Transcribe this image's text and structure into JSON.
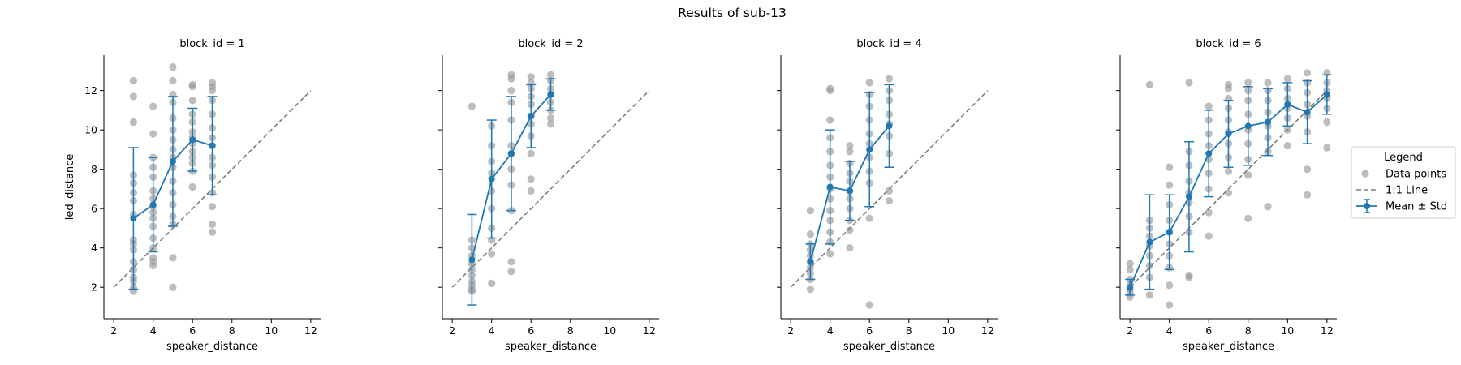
{
  "figure": {
    "title": "Results of sub-13"
  },
  "legend": {
    "title": "Legend",
    "entries": {
      "points": "Data points",
      "line": "1:1 Line",
      "mean": "Mean ± Std"
    }
  },
  "colors": {
    "points": "#999999",
    "mean": "#1f77b4",
    "identity": "#7f7f7f"
  },
  "chart_data": [
    {
      "type": "scatter",
      "title": "block_id = 1",
      "xlabel": "speaker_distance",
      "ylabel": "led_distance",
      "xlim": [
        1.5,
        12.5
      ],
      "ylim": [
        0.4,
        13.8
      ],
      "xticks": [
        2,
        4,
        6,
        8,
        10,
        12
      ],
      "yticks": [
        2,
        4,
        6,
        8,
        10,
        12
      ],
      "identity_line": [
        2,
        12
      ],
      "series": [
        {
          "x": 3,
          "mean": 5.5,
          "std": 3.6,
          "points": [
            1.8,
            2.0,
            2.3,
            2.5,
            2.9,
            3.3,
            3.9,
            4.2,
            4.4,
            5.7,
            6.4,
            6.8,
            7.3,
            7.7,
            10.4,
            11.7,
            12.5
          ]
        },
        {
          "x": 4,
          "mean": 6.2,
          "std": 2.4,
          "points": [
            3.1,
            3.3,
            3.5,
            4.0,
            4.5,
            5.1,
            5.5,
            5.8,
            6.1,
            6.5,
            6.9,
            7.6,
            8.1,
            8.6,
            9.8,
            11.2
          ]
        },
        {
          "x": 5,
          "mean": 8.4,
          "std": 3.3,
          "points": [
            2.0,
            3.5,
            5.2,
            5.6,
            6.2,
            6.8,
            7.4,
            8.1,
            8.6,
            9.0,
            9.5,
            10.0,
            10.6,
            11.4,
            11.8,
            12.5,
            13.2
          ]
        },
        {
          "x": 6,
          "mean": 9.5,
          "std": 1.6,
          "points": [
            7.1,
            7.9,
            8.3,
            8.6,
            8.9,
            9.3,
            9.6,
            9.9,
            10.4,
            10.8,
            11.5,
            12.2,
            12.3
          ]
        },
        {
          "x": 7,
          "mean": 9.2,
          "std": 2.5,
          "points": [
            4.8,
            5.2,
            6.1,
            6.8,
            7.6,
            8.2,
            8.6,
            9.2,
            9.6,
            10.1,
            10.8,
            11.5,
            12.0,
            12.2,
            12.4
          ]
        }
      ]
    },
    {
      "type": "scatter",
      "title": "block_id = 2",
      "xlabel": "speaker_distance",
      "ylabel": "",
      "xlim": [
        1.5,
        12.5
      ],
      "ylim": [
        0.4,
        13.8
      ],
      "xticks": [
        2,
        4,
        6,
        8,
        10,
        12
      ],
      "yticks": [
        2,
        4,
        6,
        8,
        10,
        12
      ],
      "identity_line": [
        2,
        12
      ],
      "series": [
        {
          "x": 3,
          "mean": 3.4,
          "std": 2.3,
          "points": [
            1.8,
            1.9,
            2.1,
            2.3,
            2.6,
            2.9,
            3.2,
            3.6,
            4.0,
            4.4,
            11.2
          ]
        },
        {
          "x": 4,
          "mean": 7.5,
          "std": 3.0,
          "points": [
            2.2,
            3.7,
            4.4,
            5.0,
            6.0,
            6.9,
            7.8,
            8.4,
            9.2,
            10.2
          ]
        },
        {
          "x": 5,
          "mean": 8.8,
          "std": 2.9,
          "points": [
            2.8,
            3.3,
            5.9,
            7.2,
            8.0,
            8.8,
            9.2,
            10.5,
            11.4,
            12.0,
            12.6,
            12.8
          ]
        },
        {
          "x": 6,
          "mean": 10.7,
          "std": 1.6,
          "points": [
            6.9,
            7.5,
            8.8,
            9.7,
            10.3,
            10.7,
            11.3,
            11.7,
            12.1,
            12.4,
            12.7
          ]
        },
        {
          "x": 7,
          "mean": 11.8,
          "std": 0.8,
          "points": [
            10.3,
            10.6,
            11.0,
            11.4,
            11.8,
            12.1,
            12.5,
            12.8
          ]
        }
      ]
    },
    {
      "type": "scatter",
      "title": "block_id = 4",
      "xlabel": "speaker_distance",
      "ylabel": "",
      "xlim": [
        1.5,
        12.5
      ],
      "ylim": [
        0.4,
        13.8
      ],
      "xticks": [
        2,
        4,
        6,
        8,
        10,
        12
      ],
      "yticks": [
        2,
        4,
        6,
        8,
        10,
        12
      ],
      "identity_line": [
        2,
        12
      ],
      "series": [
        {
          "x": 3,
          "mean": 3.3,
          "std": 0.9,
          "points": [
            1.9,
            2.4,
            2.7,
            3.0,
            3.3,
            3.6,
            3.9,
            4.2,
            4.7,
            5.9
          ]
        },
        {
          "x": 4,
          "mean": 7.1,
          "std": 2.9,
          "points": [
            3.7,
            4.3,
            4.8,
            5.4,
            5.9,
            6.5,
            7.0,
            7.6,
            8.2,
            8.9,
            9.6,
            10.5,
            12.0,
            12.1
          ]
        },
        {
          "x": 5,
          "mean": 6.9,
          "std": 1.5,
          "points": [
            4.0,
            4.9,
            5.4,
            6.0,
            6.5,
            6.9,
            7.4,
            7.8,
            8.3,
            8.9,
            9.2
          ]
        },
        {
          "x": 6,
          "mean": 9.0,
          "std": 2.9,
          "points": [
            1.1,
            5.5,
            7.3,
            7.9,
            8.6,
            9.3,
            9.8,
            10.5,
            11.2,
            11.8,
            12.4
          ]
        },
        {
          "x": 7,
          "mean": 10.2,
          "std": 2.1,
          "points": [
            6.4,
            6.9,
            8.8,
            9.7,
            10.3,
            10.8,
            11.5,
            12.0,
            12.6
          ]
        }
      ]
    },
    {
      "type": "scatter",
      "title": "block_id = 6",
      "xlabel": "speaker_distance",
      "ylabel": "",
      "xlim": [
        1.5,
        12.5
      ],
      "ylim": [
        0.4,
        13.8
      ],
      "xticks": [
        2,
        4,
        6,
        8,
        10,
        12
      ],
      "yticks": [
        2,
        4,
        6,
        8,
        10,
        12
      ],
      "identity_line": [
        2,
        12
      ],
      "series": [
        {
          "x": 2,
          "mean": 2.0,
          "std": 0.4,
          "points": [
            1.5,
            1.7,
            1.9,
            2.1,
            2.4,
            2.9,
            3.2
          ]
        },
        {
          "x": 3,
          "mean": 4.3,
          "std": 2.4,
          "points": [
            1.6,
            2.5,
            3.1,
            3.6,
            4.1,
            4.6,
            5.0,
            5.4,
            12.3
          ]
        },
        {
          "x": 4,
          "mean": 4.8,
          "std": 1.9,
          "points": [
            1.1,
            2.1,
            3.0,
            3.6,
            4.2,
            4.8,
            5.4,
            6.2,
            7.2,
            8.1
          ]
        },
        {
          "x": 5,
          "mean": 6.6,
          "std": 2.8,
          "points": [
            2.5,
            2.6,
            4.8,
            5.6,
            6.3,
            6.8,
            7.4,
            8.2,
            8.9,
            12.4
          ]
        },
        {
          "x": 6,
          "mean": 8.8,
          "std": 2.2,
          "points": [
            4.6,
            5.8,
            7.0,
            7.8,
            8.5,
            9.2,
            9.8,
            10.5,
            11.2
          ]
        },
        {
          "x": 7,
          "mean": 9.8,
          "std": 1.7,
          "points": [
            6.8,
            7.9,
            8.6,
            9.3,
            9.9,
            10.5,
            11.1,
            11.6,
            12.1,
            12.3
          ]
        },
        {
          "x": 8,
          "mean": 10.2,
          "std": 2.0,
          "points": [
            5.5,
            7.7,
            8.5,
            9.3,
            10.0,
            10.8,
            11.5,
            12.0,
            12.4
          ]
        },
        {
          "x": 9,
          "mean": 10.4,
          "std": 1.7,
          "points": [
            6.1,
            8.9,
            9.6,
            10.2,
            10.9,
            11.5,
            12.0,
            12.4
          ]
        },
        {
          "x": 10,
          "mean": 11.3,
          "std": 1.1,
          "points": [
            9.2,
            10.0,
            10.6,
            11.1,
            11.6,
            12.1,
            12.6
          ]
        },
        {
          "x": 11,
          "mean": 10.9,
          "std": 1.6,
          "points": [
            6.7,
            8.0,
            9.9,
            10.7,
            11.3,
            11.9,
            12.4,
            12.9
          ]
        },
        {
          "x": 12,
          "mean": 11.8,
          "std": 1.0,
          "points": [
            9.1,
            10.4,
            11.1,
            11.6,
            12.0,
            12.4,
            12.9
          ]
        }
      ]
    }
  ]
}
